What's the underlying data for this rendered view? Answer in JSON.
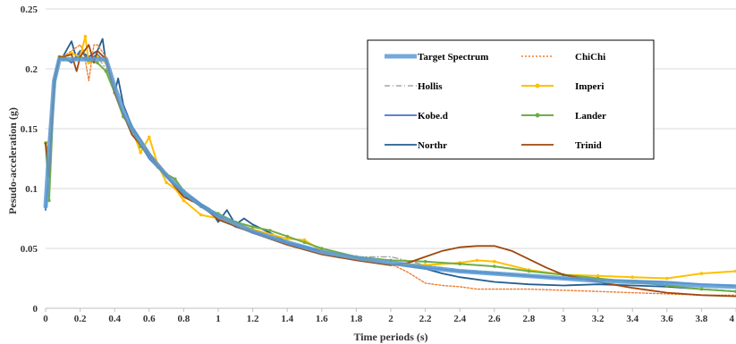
{
  "chart_data": {
    "type": "line",
    "title": "",
    "xlabel": "Time periods (s)",
    "ylabel": "Pesudo-acceleration  (g)",
    "xlim": [
      0,
      4.0
    ],
    "ylim": [
      0,
      0.25
    ],
    "grid": "horizontal",
    "legend_position": "top-right",
    "x_ticks": [
      "0",
      "0.2",
      "0.4",
      "0.6",
      "0.8",
      "1",
      "1.2",
      "1.4",
      "1.6",
      "1.8",
      "2",
      "2.2",
      "2.4",
      "2.6",
      "2.8",
      "3",
      "3.2",
      "3.4",
      "3.6",
      "3.8",
      "4"
    ],
    "y_ticks": [
      "0",
      "0.05",
      "0.1",
      "0.15",
      "0.2",
      "0.25"
    ],
    "series": [
      {
        "name": "Target Spectrum",
        "color": "#5b9bd5",
        "style": "thick",
        "x": [
          0,
          0.02,
          0.05,
          0.08,
          0.1,
          0.15,
          0.2,
          0.25,
          0.3,
          0.35,
          0.4,
          0.45,
          0.5,
          0.6,
          0.7,
          0.8,
          0.9,
          1.0,
          1.2,
          1.4,
          1.6,
          1.8,
          2.0,
          2.2,
          2.4,
          2.6,
          2.8,
          3.0,
          3.2,
          3.4,
          3.6,
          3.8,
          4.0
        ],
        "y": [
          0.085,
          0.13,
          0.19,
          0.208,
          0.208,
          0.208,
          0.208,
          0.208,
          0.208,
          0.208,
          0.185,
          0.165,
          0.15,
          0.128,
          0.111,
          0.097,
          0.086,
          0.077,
          0.064,
          0.055,
          0.047,
          0.042,
          0.038,
          0.034,
          0.031,
          0.029,
          0.027,
          0.025,
          0.023,
          0.022,
          0.021,
          0.019,
          0.018
        ]
      },
      {
        "name": "ChiChi",
        "color": "#ed7d31",
        "style": "dotted",
        "x": [
          0,
          0.02,
          0.05,
          0.08,
          0.1,
          0.15,
          0.2,
          0.22,
          0.25,
          0.28,
          0.3,
          0.35,
          0.4,
          0.45,
          0.5,
          0.6,
          0.7,
          0.8,
          0.9,
          1.0,
          1.2,
          1.4,
          1.6,
          1.8,
          2.0,
          2.1,
          2.2,
          2.3,
          2.4,
          2.5,
          2.6,
          2.8,
          3.0,
          3.2,
          3.4,
          3.6,
          3.8,
          4.0
        ],
        "y": [
          0.138,
          0.14,
          0.19,
          0.21,
          0.21,
          0.215,
          0.22,
          0.215,
          0.19,
          0.22,
          0.22,
          0.21,
          0.185,
          0.16,
          0.15,
          0.13,
          0.112,
          0.095,
          0.085,
          0.077,
          0.065,
          0.055,
          0.047,
          0.04,
          0.037,
          0.03,
          0.021,
          0.019,
          0.018,
          0.016,
          0.016,
          0.016,
          0.015,
          0.014,
          0.013,
          0.012,
          0.011,
          0.011
        ]
      },
      {
        "name": "Hollis",
        "color": "#a5a5a5",
        "style": "dashdot",
        "x": [
          0,
          0.02,
          0.05,
          0.08,
          0.1,
          0.15,
          0.2,
          0.25,
          0.3,
          0.35,
          0.4,
          0.45,
          0.5,
          0.6,
          0.7,
          0.8,
          0.9,
          1.0,
          1.2,
          1.4,
          1.6,
          1.8,
          2.0,
          2.2,
          2.4,
          2.6,
          2.8,
          3.0,
          3.2,
          3.4,
          3.6,
          3.8,
          4.0
        ],
        "y": [
          0.138,
          0.13,
          0.19,
          0.208,
          0.21,
          0.207,
          0.21,
          0.205,
          0.21,
          0.2,
          0.18,
          0.163,
          0.148,
          0.127,
          0.11,
          0.096,
          0.085,
          0.076,
          0.064,
          0.054,
          0.047,
          0.043,
          0.043,
          0.036,
          0.032,
          0.03,
          0.027,
          0.025,
          0.023,
          0.022,
          0.021,
          0.02,
          0.018
        ]
      },
      {
        "name": "Imperi",
        "color": "#ffc000",
        "style": "marker",
        "x": [
          0,
          0.02,
          0.05,
          0.08,
          0.1,
          0.15,
          0.2,
          0.23,
          0.25,
          0.3,
          0.35,
          0.4,
          0.45,
          0.5,
          0.55,
          0.6,
          0.65,
          0.7,
          0.75,
          0.8,
          0.9,
          1.0,
          1.2,
          1.4,
          1.5,
          1.6,
          1.8,
          2.0,
          2.2,
          2.4,
          2.5,
          2.6,
          2.8,
          3.0,
          3.2,
          3.4,
          3.6,
          3.8,
          4.0
        ],
        "y": [
          0.138,
          0.12,
          0.19,
          0.21,
          0.21,
          0.213,
          0.21,
          0.227,
          0.205,
          0.21,
          0.205,
          0.18,
          0.16,
          0.15,
          0.13,
          0.143,
          0.12,
          0.105,
          0.1,
          0.09,
          0.078,
          0.075,
          0.066,
          0.058,
          0.057,
          0.048,
          0.041,
          0.037,
          0.036,
          0.038,
          0.04,
          0.039,
          0.032,
          0.028,
          0.027,
          0.026,
          0.025,
          0.029,
          0.031
        ]
      },
      {
        "name": "Kobe.d",
        "color": "#4472c4",
        "style": "solid",
        "x": [
          0,
          0.02,
          0.05,
          0.08,
          0.1,
          0.15,
          0.2,
          0.25,
          0.3,
          0.35,
          0.4,
          0.45,
          0.5,
          0.6,
          0.7,
          0.8,
          0.9,
          1.0,
          1.1,
          1.2,
          1.4,
          1.6,
          1.8,
          2.0,
          2.2,
          2.4,
          2.6,
          2.8,
          3.0,
          3.2,
          3.4,
          3.6,
          3.8,
          4.0
        ],
        "y": [
          0.082,
          0.12,
          0.185,
          0.208,
          0.21,
          0.205,
          0.215,
          0.208,
          0.212,
          0.205,
          0.18,
          0.162,
          0.148,
          0.125,
          0.11,
          0.095,
          0.085,
          0.077,
          0.068,
          0.064,
          0.054,
          0.047,
          0.042,
          0.037,
          0.034,
          0.031,
          0.029,
          0.027,
          0.025,
          0.024,
          0.023,
          0.022,
          0.02,
          0.019
        ]
      },
      {
        "name": "Lander",
        "color": "#70ad47",
        "style": "marker",
        "x": [
          0,
          0.02,
          0.05,
          0.08,
          0.1,
          0.15,
          0.2,
          0.25,
          0.3,
          0.35,
          0.4,
          0.45,
          0.5,
          0.55,
          0.6,
          0.65,
          0.7,
          0.75,
          0.8,
          0.85,
          0.9,
          1.0,
          1.1,
          1.2,
          1.3,
          1.4,
          1.5,
          1.6,
          1.8,
          2.0,
          2.2,
          2.4,
          2.6,
          2.8,
          3.0,
          3.2,
          3.4,
          3.6,
          3.8,
          4.0
        ],
        "y": [
          0.138,
          0.09,
          0.185,
          0.21,
          0.208,
          0.207,
          0.21,
          0.207,
          0.205,
          0.198,
          0.18,
          0.16,
          0.15,
          0.135,
          0.128,
          0.118,
          0.112,
          0.108,
          0.098,
          0.09,
          0.085,
          0.079,
          0.072,
          0.068,
          0.065,
          0.06,
          0.055,
          0.05,
          0.043,
          0.04,
          0.039,
          0.037,
          0.035,
          0.031,
          0.028,
          0.025,
          0.022,
          0.019,
          0.016,
          0.014
        ]
      },
      {
        "name": "Northr",
        "color": "#255e91",
        "style": "solid",
        "x": [
          0,
          0.02,
          0.05,
          0.08,
          0.1,
          0.15,
          0.18,
          0.2,
          0.25,
          0.3,
          0.33,
          0.35,
          0.4,
          0.42,
          0.45,
          0.5,
          0.6,
          0.7,
          0.8,
          0.9,
          0.95,
          1.0,
          1.05,
          1.1,
          1.15,
          1.2,
          1.3,
          1.4,
          1.6,
          1.8,
          2.0,
          2.2,
          2.3,
          2.4,
          2.6,
          2.8,
          3.0,
          3.2,
          3.4,
          3.6,
          3.8,
          4.0
        ],
        "y": [
          0.138,
          0.11,
          0.19,
          0.21,
          0.21,
          0.223,
          0.208,
          0.215,
          0.21,
          0.215,
          0.225,
          0.205,
          0.18,
          0.192,
          0.17,
          0.152,
          0.13,
          0.11,
          0.097,
          0.087,
          0.083,
          0.072,
          0.082,
          0.07,
          0.075,
          0.07,
          0.063,
          0.055,
          0.048,
          0.042,
          0.037,
          0.033,
          0.029,
          0.026,
          0.022,
          0.02,
          0.019,
          0.02,
          0.019,
          0.018,
          0.016,
          0.014
        ]
      },
      {
        "name": "Trinid",
        "color": "#9e480e",
        "style": "solid",
        "x": [
          0,
          0.02,
          0.05,
          0.08,
          0.1,
          0.15,
          0.18,
          0.2,
          0.25,
          0.28,
          0.3,
          0.35,
          0.4,
          0.45,
          0.5,
          0.6,
          0.7,
          0.8,
          0.9,
          1.0,
          1.2,
          1.4,
          1.6,
          1.8,
          2.0,
          2.1,
          2.2,
          2.3,
          2.4,
          2.5,
          2.55,
          2.6,
          2.7,
          2.8,
          2.9,
          3.0,
          3.2,
          3.4,
          3.6,
          3.8,
          4.0
        ],
        "y": [
          0.138,
          0.11,
          0.19,
          0.21,
          0.21,
          0.212,
          0.198,
          0.21,
          0.22,
          0.205,
          0.215,
          0.208,
          0.18,
          0.162,
          0.145,
          0.128,
          0.11,
          0.093,
          0.086,
          0.074,
          0.063,
          0.053,
          0.045,
          0.04,
          0.036,
          0.038,
          0.043,
          0.048,
          0.051,
          0.052,
          0.052,
          0.052,
          0.048,
          0.041,
          0.034,
          0.028,
          0.022,
          0.017,
          0.013,
          0.011,
          0.01
        ]
      }
    ]
  }
}
